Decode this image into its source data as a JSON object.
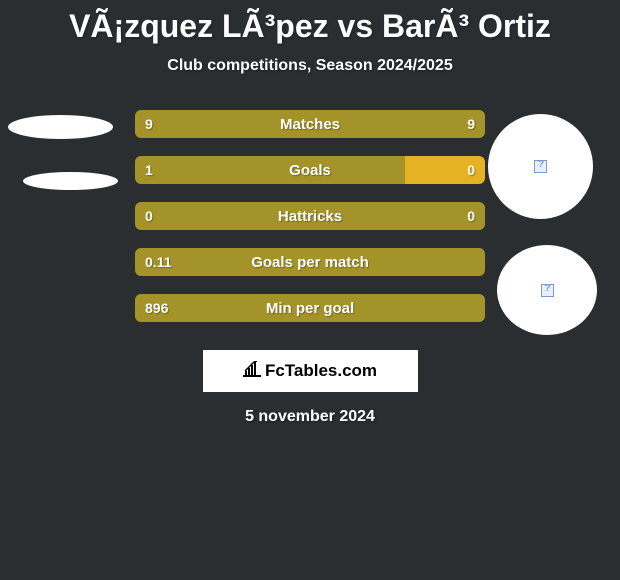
{
  "title": "VÃ¡zquez LÃ³pez vs BarÃ³ Ortiz",
  "subtitle": "Club competitions, Season 2024/2025",
  "footer_logo_text": "FcTables.com",
  "footer_date": "5 november 2024",
  "colors": {
    "background": "#2a2e31",
    "left_bar": "#a39329",
    "right_bar": "#e5b125",
    "white": "#ffffff"
  },
  "rows": [
    {
      "label": "Matches",
      "left_value": "9",
      "right_value": "9",
      "left_pct": 50,
      "right_pct": 50,
      "left_color": "#a39329",
      "right_color": "#a39329"
    },
    {
      "label": "Goals",
      "left_value": "1",
      "right_value": "0",
      "left_pct": 77,
      "right_pct": 23,
      "left_color": "#a39329",
      "right_color": "#e5b125"
    },
    {
      "label": "Hattricks",
      "left_value": "0",
      "right_value": "0",
      "left_pct": 50,
      "right_pct": 50,
      "left_color": "#a39329",
      "right_color": "#a39329"
    },
    {
      "label": "Goals per match",
      "left_value": "0.11",
      "right_value": "",
      "left_pct": 100,
      "right_pct": 0,
      "left_color": "#a39329",
      "right_color": "#a39329"
    },
    {
      "label": "Min per goal",
      "left_value": "896",
      "right_value": "",
      "left_pct": 100,
      "right_pct": 0,
      "left_color": "#a39329",
      "right_color": "#a39329"
    }
  ]
}
